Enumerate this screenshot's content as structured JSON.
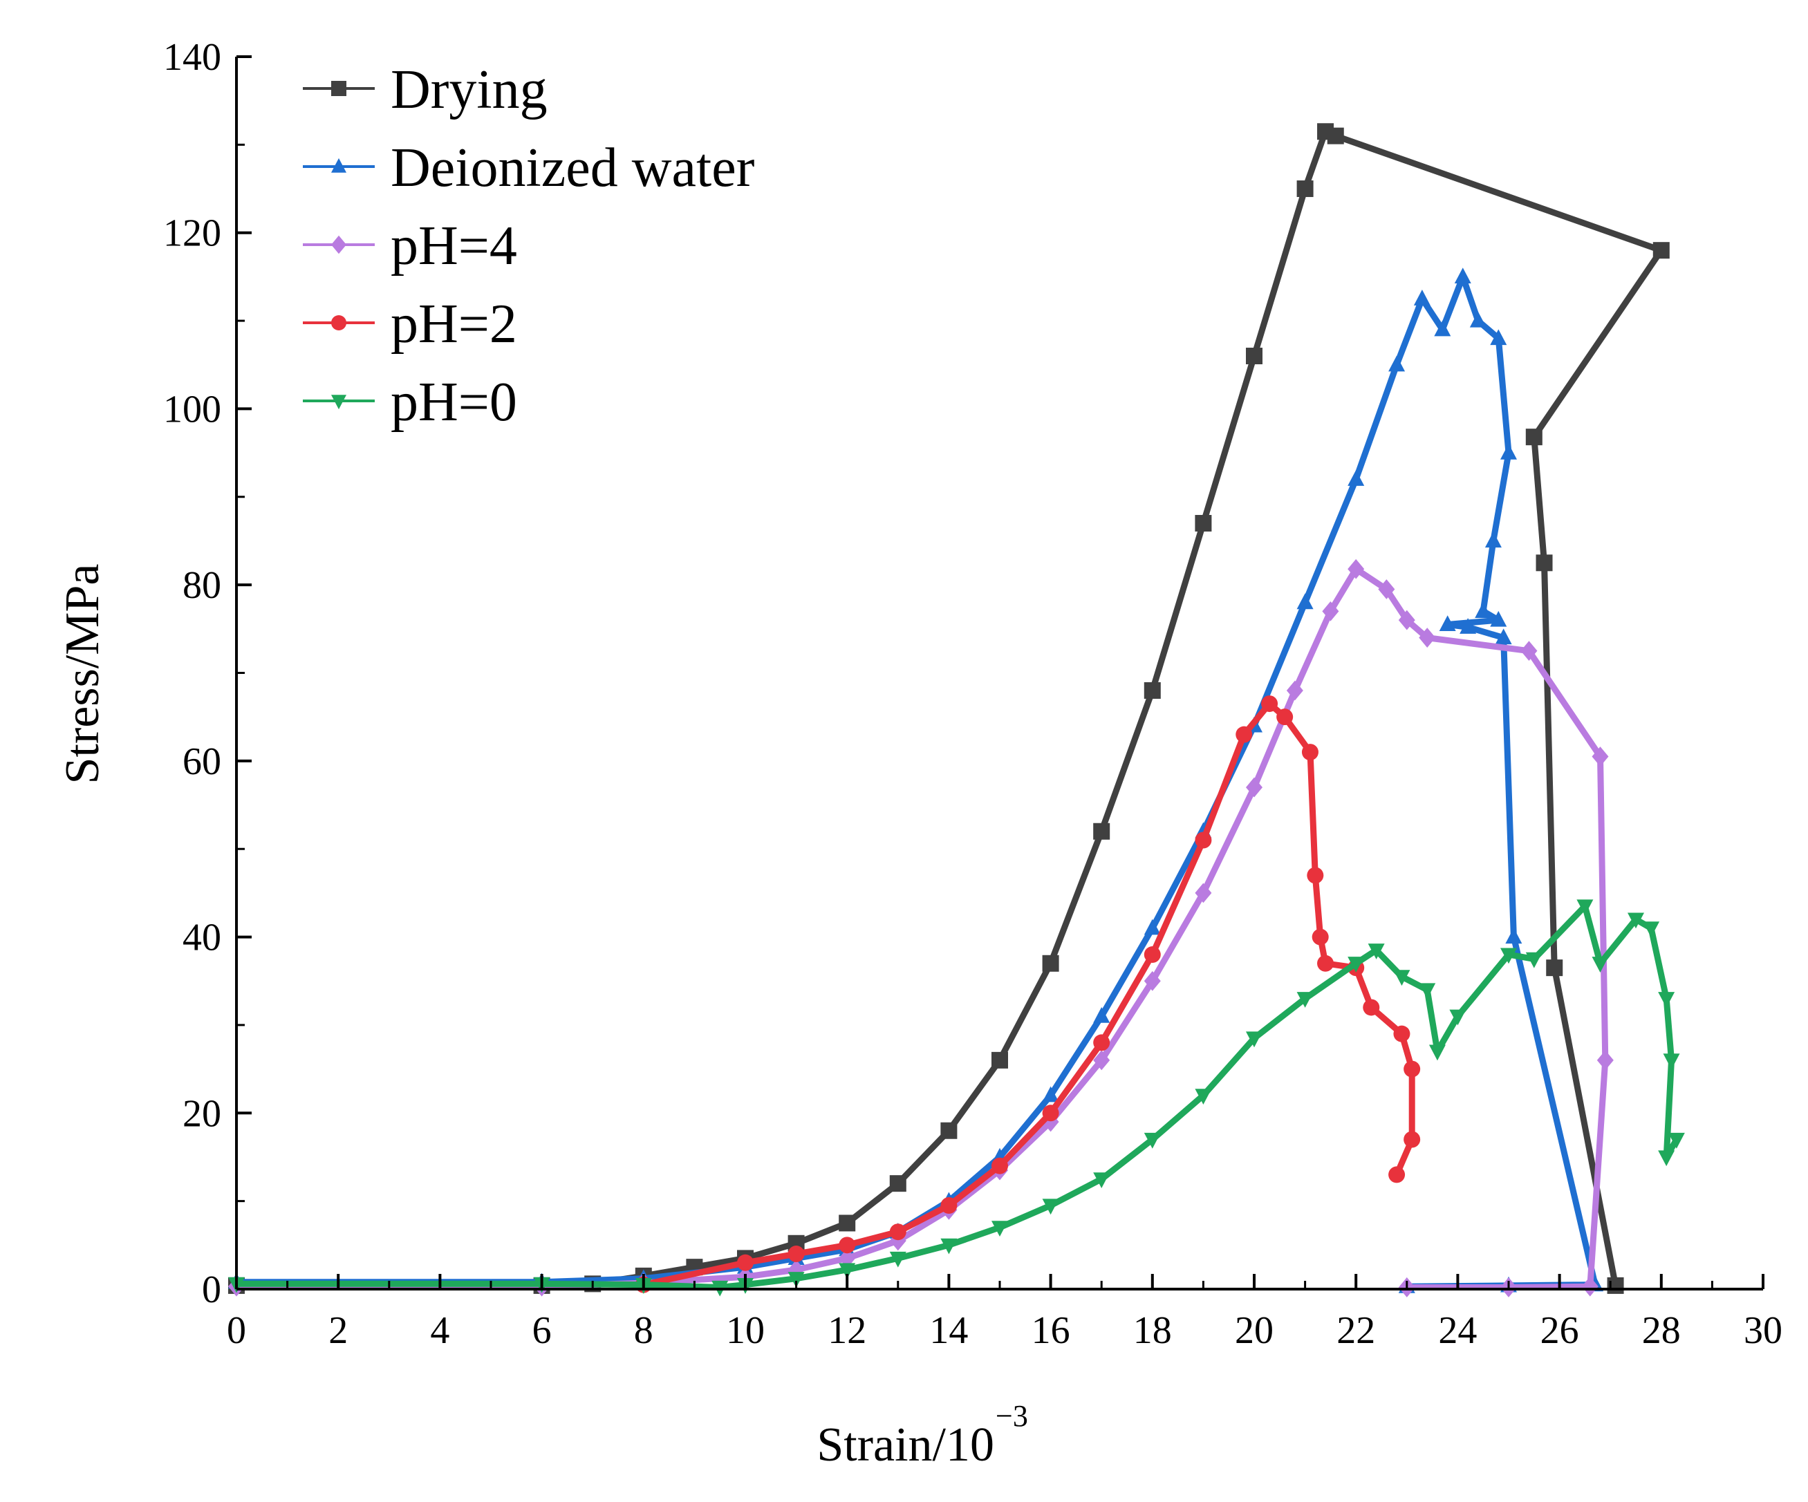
{
  "chart_data": {
    "type": "line",
    "title": "",
    "xlabel": "Strain/10",
    "xlabel_exponent": "−3",
    "ylabel": "Stress/MPa",
    "xlim": [
      0,
      30
    ],
    "ylim": [
      0,
      140
    ],
    "xticks": [
      "0",
      "2",
      "4",
      "6",
      "8",
      "10",
      "12",
      "14",
      "16",
      "18",
      "20",
      "22",
      "24",
      "26",
      "28",
      "30"
    ],
    "yticks": [
      "0",
      "20",
      "40",
      "60",
      "80",
      "100",
      "120",
      "140"
    ],
    "legend_position": "top-left",
    "series": [
      {
        "name": "Drying",
        "color": "#404040",
        "marker": "square",
        "points": [
          [
            0,
            0.4
          ],
          [
            6,
            0.4
          ],
          [
            7,
            0.6
          ],
          [
            8,
            1.5
          ],
          [
            9,
            2.5
          ],
          [
            10,
            3.5
          ],
          [
            11,
            5.2
          ],
          [
            12,
            7.5
          ],
          [
            13,
            12
          ],
          [
            14,
            18
          ],
          [
            15,
            26
          ],
          [
            16,
            37
          ],
          [
            17,
            52
          ],
          [
            18,
            68
          ],
          [
            19,
            87
          ],
          [
            20,
            106
          ],
          [
            21,
            125
          ],
          [
            21.4,
            131.5
          ],
          [
            21.6,
            131
          ],
          [
            28,
            118
          ],
          [
            25.5,
            96.8
          ],
          [
            25.7,
            82.5
          ],
          [
            25.9,
            36.5
          ],
          [
            27.1,
            0.4
          ]
        ]
      },
      {
        "name": "Deionized water",
        "color": "#1f6fd1",
        "marker": "triangle-up",
        "points": [
          [
            0,
            0.8
          ],
          [
            6,
            0.8
          ],
          [
            8,
            1.2
          ],
          [
            10,
            2.5
          ],
          [
            11,
            3.5
          ],
          [
            12,
            4.5
          ],
          [
            13,
            6.5
          ],
          [
            14,
            10
          ],
          [
            15,
            15
          ],
          [
            16,
            22
          ],
          [
            17,
            31
          ],
          [
            18,
            41
          ],
          [
            19,
            52
          ],
          [
            20,
            64
          ],
          [
            21,
            78
          ],
          [
            22,
            92
          ],
          [
            22.8,
            105
          ],
          [
            23.3,
            112.5
          ],
          [
            23.7,
            109
          ],
          [
            24.1,
            115
          ],
          [
            24.4,
            110
          ],
          [
            24.8,
            108
          ],
          [
            25,
            95
          ],
          [
            24.7,
            85
          ],
          [
            24.5,
            77
          ],
          [
            24.8,
            76
          ],
          [
            23.8,
            75.5
          ],
          [
            24.2,
            75.2
          ],
          [
            24.9,
            74
          ],
          [
            25.1,
            40
          ],
          [
            26.7,
            0.5
          ],
          [
            25,
            0.4
          ],
          [
            23,
            0.3
          ]
        ]
      },
      {
        "name": "pH=4",
        "color": "#b97be0",
        "marker": "diamond",
        "points": [
          [
            0,
            0.3
          ],
          [
            6,
            0.3
          ],
          [
            8,
            0.7
          ],
          [
            10,
            1.4
          ],
          [
            11,
            2.2
          ],
          [
            12,
            3.5
          ],
          [
            13,
            5.5
          ],
          [
            14,
            9
          ],
          [
            15,
            13.5
          ],
          [
            16,
            19
          ],
          [
            17,
            26
          ],
          [
            18,
            35
          ],
          [
            19,
            45
          ],
          [
            20,
            57
          ],
          [
            20.8,
            68
          ],
          [
            21.5,
            77
          ],
          [
            22,
            81.8
          ],
          [
            22.6,
            79.5
          ],
          [
            23,
            76
          ],
          [
            23.4,
            74
          ],
          [
            25.4,
            72.5
          ],
          [
            26.8,
            60.5
          ],
          [
            26.9,
            26
          ],
          [
            26.6,
            0.3
          ],
          [
            25,
            0.2
          ],
          [
            23,
            0.2
          ]
        ]
      },
      {
        "name": "pH=2",
        "color": "#e8323c",
        "marker": "circle",
        "points": [
          [
            8,
            0.5
          ],
          [
            10,
            3
          ],
          [
            11,
            4
          ],
          [
            12,
            5
          ],
          [
            13,
            6.5
          ],
          [
            14,
            9.5
          ],
          [
            15,
            14
          ],
          [
            16,
            20
          ],
          [
            17,
            28
          ],
          [
            18,
            38
          ],
          [
            19,
            51
          ],
          [
            19.8,
            63
          ],
          [
            20.3,
            66.5
          ],
          [
            20.6,
            65
          ],
          [
            21.1,
            61
          ],
          [
            21.2,
            47
          ],
          [
            21.3,
            40
          ],
          [
            21.4,
            37
          ],
          [
            22,
            36.5
          ],
          [
            22.3,
            32
          ],
          [
            22.9,
            29
          ],
          [
            23.1,
            25
          ],
          [
            23.1,
            17
          ],
          [
            22.8,
            13
          ]
        ]
      },
      {
        "name": "pH=0",
        "color": "#1fa85b",
        "marker": "triangle-down",
        "points": [
          [
            0,
            0.6
          ],
          [
            6,
            0.6
          ],
          [
            8,
            0.5
          ],
          [
            9.5,
            0.2
          ],
          [
            10,
            0.5
          ],
          [
            11,
            1.2
          ],
          [
            12,
            2.2
          ],
          [
            13,
            3.5
          ],
          [
            14,
            5
          ],
          [
            15,
            7
          ],
          [
            16,
            9.5
          ],
          [
            17,
            12.5
          ],
          [
            18,
            17
          ],
          [
            19,
            22
          ],
          [
            20,
            28.5
          ],
          [
            21,
            33
          ],
          [
            22,
            37
          ],
          [
            22.4,
            38.5
          ],
          [
            22.9,
            35.5
          ],
          [
            23.4,
            34
          ],
          [
            23.6,
            27
          ],
          [
            24,
            31
          ],
          [
            25,
            38
          ],
          [
            25.5,
            37.5
          ],
          [
            26.5,
            43.5
          ],
          [
            26.8,
            37
          ],
          [
            27.5,
            42
          ],
          [
            27.8,
            41
          ],
          [
            28.1,
            33
          ],
          [
            28.2,
            26
          ],
          [
            28.1,
            15
          ],
          [
            28.3,
            17
          ]
        ]
      }
    ]
  }
}
